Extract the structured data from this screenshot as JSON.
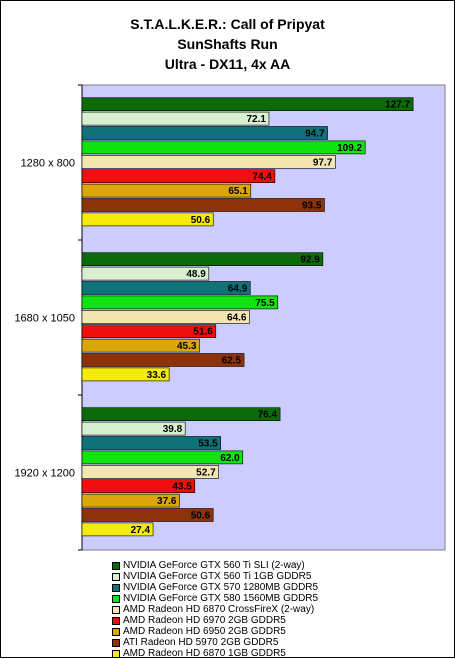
{
  "chart_data": {
    "type": "bar",
    "orientation": "horizontal",
    "title": "S.T.A.L.K.E.R.: Call of Pripyat",
    "subtitle": "SunShafts Run",
    "subtitle2": "Ultra - DX11, 4x AA",
    "categories": [
      "1280 x 800",
      "1680 x 1050",
      "1920 x 1200"
    ],
    "xlim": [
      0,
      140
    ],
    "grid": false,
    "legend_position": "bottom",
    "plot_background": "#ccccff",
    "series": [
      {
        "name": "NVIDIA GeForce GTX 560 Ti SLI (2-way)",
        "color": "#0b6b0b",
        "values": [
          127.7,
          92.9,
          76.4
        ]
      },
      {
        "name": "NVIDIA GeForce GTX 560 Ti 1GB GDDR5",
        "color": "#d8f0d0",
        "values": [
          72.1,
          48.9,
          39.8
        ]
      },
      {
        "name": "NVIDIA GeForce GTX 570 1280MB GDDR5",
        "color": "#0e7276",
        "values": [
          94.7,
          64.9,
          53.5
        ]
      },
      {
        "name": "NVIDIA GeForce GTX 580 1560MB GDDR5",
        "color": "#11e311",
        "values": [
          109.2,
          75.5,
          62.0
        ]
      },
      {
        "name": "AMD Radeon HD 6870 CrossFireX (2-way)",
        "color": "#f4e6b0",
        "values": [
          97.7,
          64.6,
          52.7
        ]
      },
      {
        "name": "AMD Radeon HD 6970 2GB GDDR5",
        "color": "#ee0f0f",
        "values": [
          74.4,
          51.6,
          43.5
        ]
      },
      {
        "name": "AMD Radeon HD 6950 2GB GDDR5",
        "color": "#dba60c",
        "values": [
          65.1,
          45.3,
          37.6
        ]
      },
      {
        "name": "ATI Radeon HD 5970 2GB GDDR5",
        "color": "#8e3309",
        "values": [
          93.5,
          62.5,
          50.6
        ]
      },
      {
        "name": "AMD Radeon HD 6870 1GB GDDR5",
        "color": "#f4ea0b",
        "values": [
          50.6,
          33.6,
          27.4
        ]
      }
    ]
  }
}
